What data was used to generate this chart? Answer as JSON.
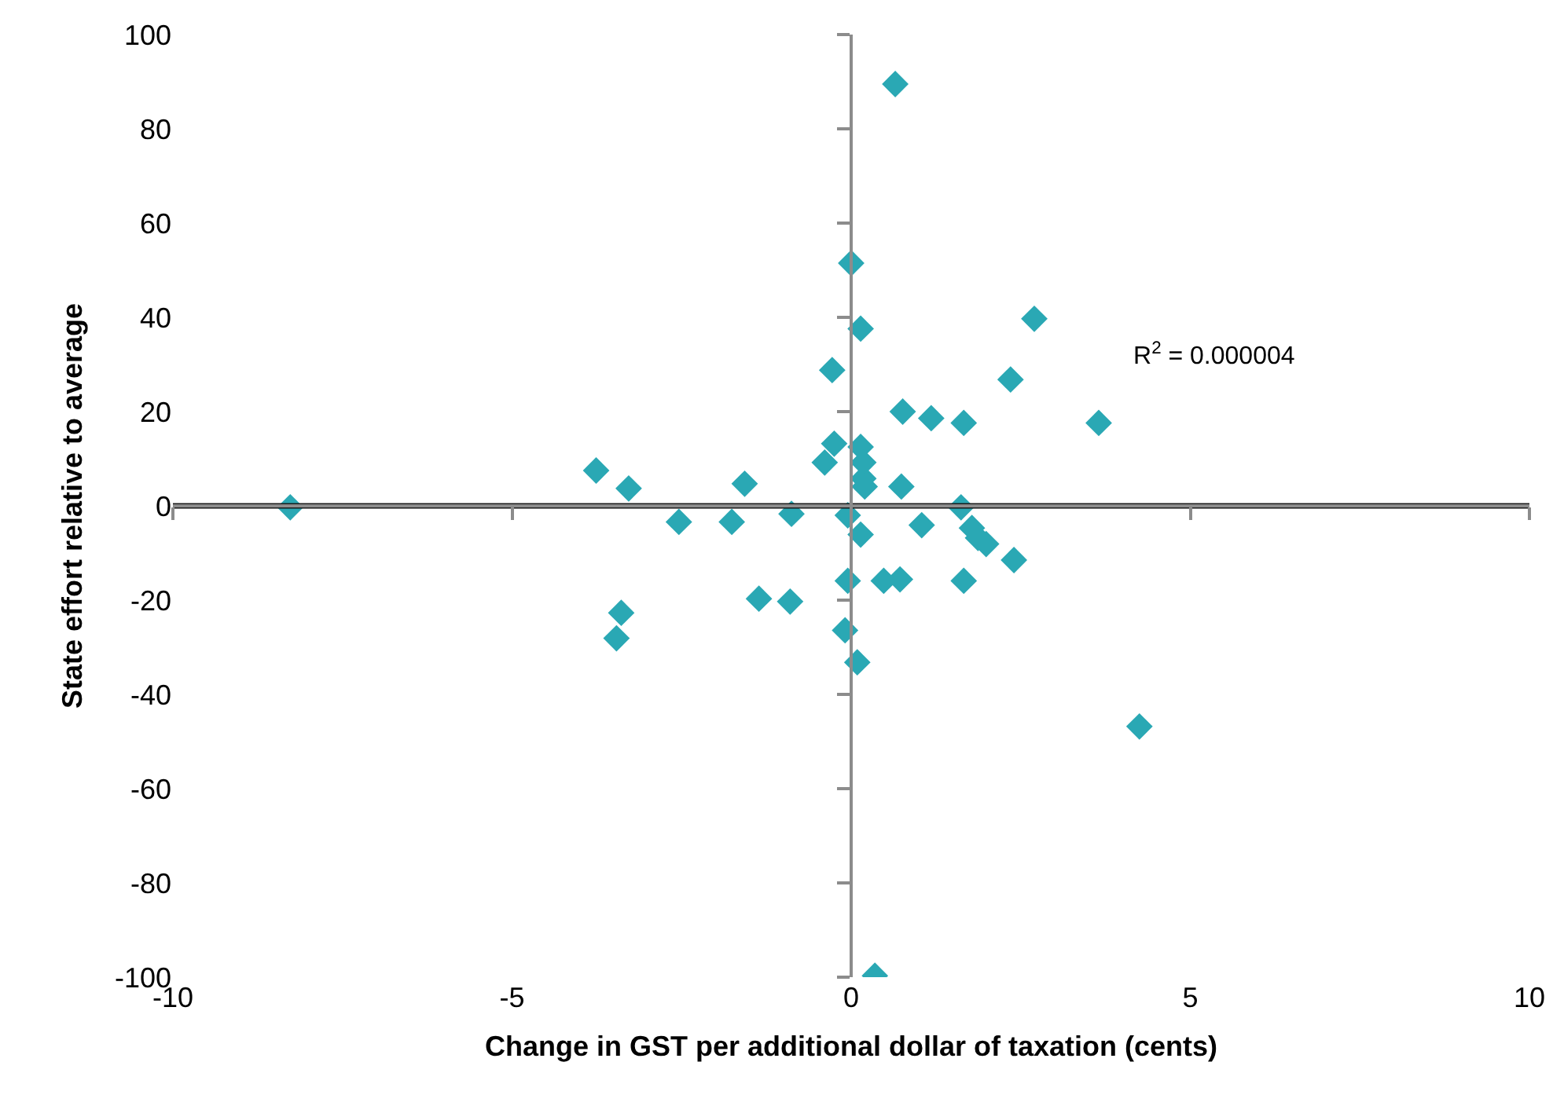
{
  "chart_data": {
    "type": "scatter",
    "xlabel": "Change in GST per additional dollar of taxation (cents)",
    "ylabel": "State effort relative to average",
    "annotations": [
      "R$^{2}$ = 0.000004"
    ],
    "series": [
      {
        "color": "#2aa8b4",
        "marker": "diamond",
        "x": [
          0.65,
          0,
          0.14,
          2.7,
          2.35,
          -0.28,
          0.76,
          1.18,
          1.66,
          3.65,
          -3.76,
          -3.28,
          -1.57,
          -0.25,
          -0.39,
          0.14,
          0.18,
          0.18,
          0.2,
          0.74,
          1.62,
          -8.27,
          -2.54,
          -1.76,
          -0.88,
          -0.05,
          0.14,
          1.04,
          1.78,
          1.87,
          1.99,
          2.4,
          -0.05,
          0.48,
          0.72,
          1.66,
          -1.36,
          -0.9,
          -3.39,
          -3.46,
          -0.09,
          0.09,
          4.25,
          0.35
        ],
        "values": [
          89.5,
          51.5,
          37.6,
          39.7,
          26.8,
          28.8,
          20,
          18.6,
          17.6,
          17.6,
          7.5,
          3.7,
          4.7,
          13.2,
          9.2,
          12.5,
          9.2,
          5.8,
          4.1,
          4.1,
          -0.3,
          -0.3,
          -3.4,
          -3.4,
          -1.7,
          -2,
          -6.1,
          -4.1,
          -4.7,
          -6.8,
          -8.1,
          -11.5,
          -15.9,
          -15.9,
          -15.6,
          -15.9,
          -19.7,
          -20.3,
          -22.7,
          -28.1,
          -26.4,
          -33.2,
          -46.8,
          -99.7
        ]
      },
      {
        "type": "line",
        "color": "#1a1a1a",
        "marker": "none",
        "line_style": "solid",
        "x": [
          -10,
          10
        ],
        "values": [
          0,
          0
        ]
      }
    ],
    "xlim": [
      -10,
      10
    ],
    "xticks": [
      -10,
      -5,
      0,
      5,
      10
    ],
    "ylim": [
      -100,
      100
    ],
    "yticks": [
      -100,
      -80,
      -60,
      -40,
      -20,
      0,
      20,
      40,
      60,
      80,
      100
    ],
    "legend": false
  }
}
